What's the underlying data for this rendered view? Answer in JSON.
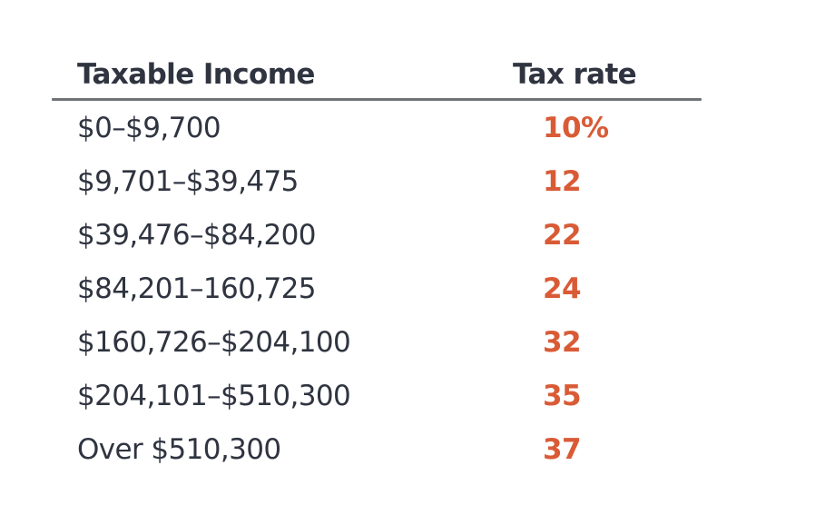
{
  "table": {
    "columns": [
      {
        "label": "Taxable Income"
      },
      {
        "label": "Tax rate"
      }
    ],
    "rows": [
      {
        "income": "$0–$9,700",
        "rate": "10%"
      },
      {
        "income": "$9,701–$39,475",
        "rate": "12"
      },
      {
        "income": "$39,476–$84,200",
        "rate": "22"
      },
      {
        "income": "$84,201–160,725",
        "rate": "24"
      },
      {
        "income": "$160,726–$204,100",
        "rate": "32"
      },
      {
        "income": "$204,101–$510,300",
        "rate": "35"
      },
      {
        "income": "Over $510,300",
        "rate": "37"
      }
    ]
  },
  "colors": {
    "background": "#ffffff",
    "text": "#2f3440",
    "rate_accent": "#d95b36",
    "rule": "#6f7276"
  }
}
